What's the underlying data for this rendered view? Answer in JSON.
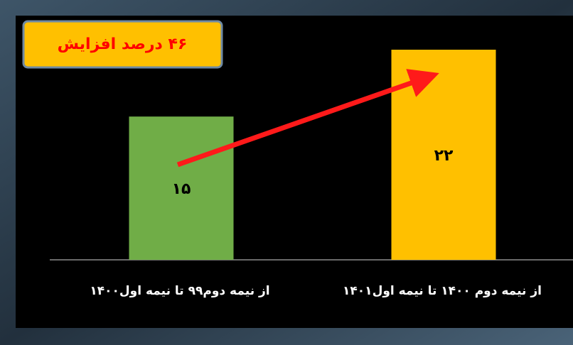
{
  "chart_data": {
    "type": "bar",
    "annotation": "۴۶ درصد افزایش",
    "categories": [
      "از نیمه دوم۹۹ تا نیمه اول۱۴۰۰",
      "از نیمه دوم ۱۴۰۰ تا نیمه اول۱۴۰۱"
    ],
    "values": [
      15,
      22
    ],
    "value_labels": [
      "۱۵",
      "۲۲"
    ],
    "colors": [
      "#70ad47",
      "#ffc000"
    ]
  }
}
